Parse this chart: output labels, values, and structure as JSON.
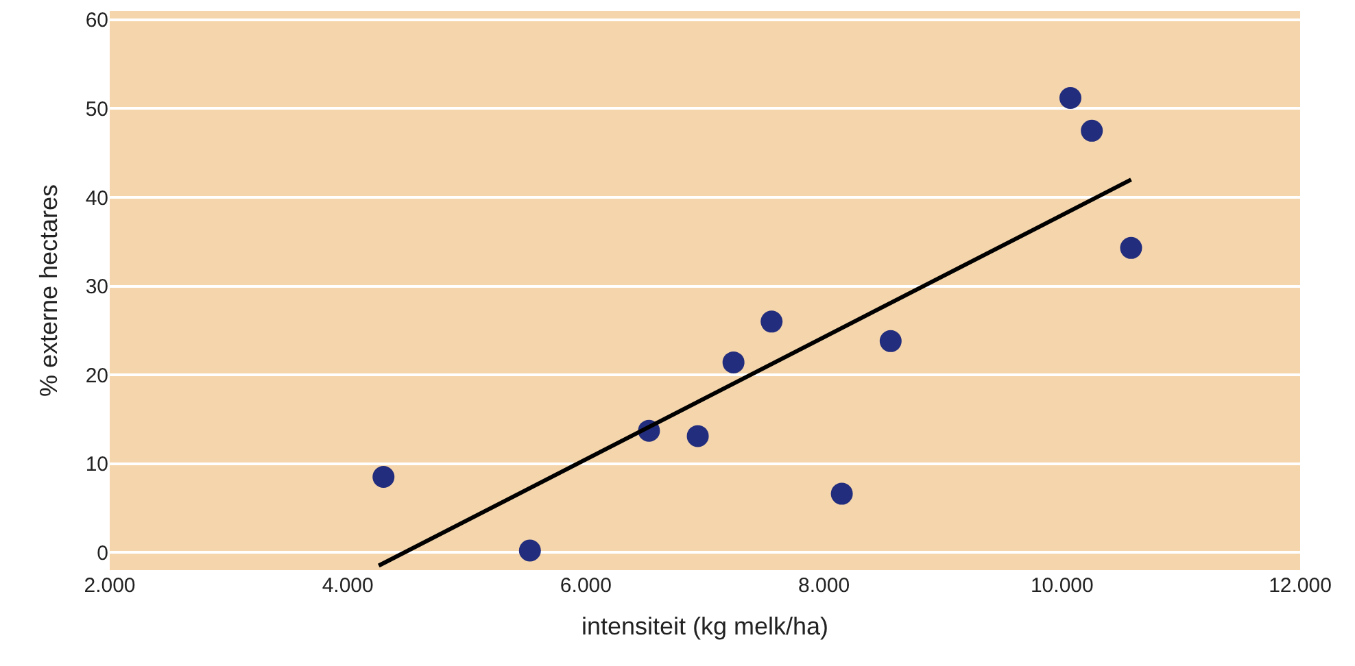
{
  "chart_data": {
    "type": "scatter",
    "xlabel": "intensiteit (kg melk/ha)",
    "ylabel": "% externe hectares",
    "xlim": [
      2000,
      12000
    ],
    "ylim": [
      -2,
      61
    ],
    "xticks": [
      {
        "value": 2000,
        "label": "2.000"
      },
      {
        "value": 4000,
        "label": "4.000"
      },
      {
        "value": 6000,
        "label": "6.000"
      },
      {
        "value": 8000,
        "label": "8.000"
      },
      {
        "value": 10000,
        "label": "10.000"
      },
      {
        "value": 12000,
        "label": "12.000"
      }
    ],
    "yticks": [
      0,
      10,
      20,
      30,
      40,
      50,
      60
    ],
    "grid": "y",
    "marker": "circle",
    "series": [
      {
        "color": "#232d7d",
        "x": [
          4300,
          5530,
          6530,
          6940,
          7240,
          7560,
          8150,
          8560,
          10070,
          10250,
          10580
        ],
        "values": [
          8.5,
          0.2,
          13.7,
          13.1,
          21.4,
          26,
          6.6,
          23.8,
          51.2,
          47.5,
          34.3
        ]
      },
      {
        "type": "line",
        "color": "#000000",
        "x": [
          4260,
          10580
        ],
        "values": [
          -1.5,
          42
        ],
        "marker": "none",
        "line_style": "solid"
      }
    ]
  }
}
